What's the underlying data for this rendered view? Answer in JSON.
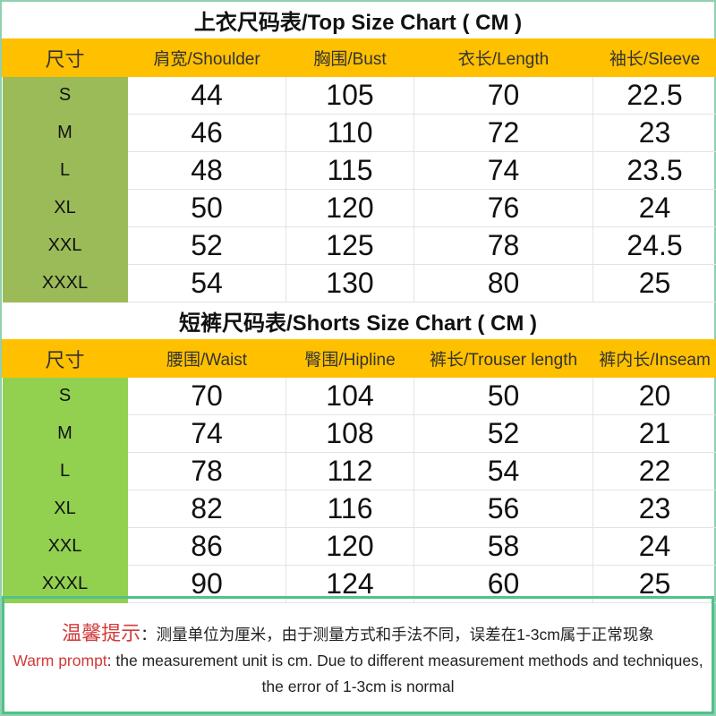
{
  "top": {
    "title": "上衣尺码表/Top Size Chart ( CM )",
    "headers": [
      "尺寸",
      "肩宽/Shoulder",
      "胸围/Bust",
      "衣长/Length",
      "袖长/Sleeve"
    ],
    "rows": [
      [
        "S",
        "44",
        "105",
        "70",
        "22.5"
      ],
      [
        "M",
        "46",
        "110",
        "72",
        "23"
      ],
      [
        "L",
        "48",
        "115",
        "74",
        "23.5"
      ],
      [
        "XL",
        "50",
        "120",
        "76",
        "24"
      ],
      [
        "XXL",
        "52",
        "125",
        "78",
        "24.5"
      ],
      [
        "XXXL",
        "54",
        "130",
        "80",
        "25"
      ]
    ]
  },
  "shorts": {
    "title": "短裤尺码表/Shorts Size Chart ( CM )",
    "headers": [
      "尺寸",
      "腰围/Waist",
      "臀围/Hipline",
      "裤长/Trouser length",
      "裤内长/Inseam"
    ],
    "rows": [
      [
        "S",
        "70",
        "104",
        "50",
        "20"
      ],
      [
        "M",
        "74",
        "108",
        "52",
        "21"
      ],
      [
        "L",
        "78",
        "112",
        "54",
        "22"
      ],
      [
        "XL",
        "82",
        "116",
        "56",
        "23"
      ],
      [
        "XXL",
        "86",
        "120",
        "58",
        "24"
      ],
      [
        "XXXL",
        "90",
        "124",
        "60",
        "25"
      ]
    ]
  },
  "note": {
    "cn_label": "温馨提示",
    "cn_text": "：测量单位为厘米，由于测量方式和手法不同，误差在1-3cm属于正常现象",
    "en_label": "Warm prompt",
    "en_text": ": the measurement unit is cm. Due to different measurement methods and techniques, the error of 1-3cm is normal"
  },
  "colors": {
    "header": "#ffc000",
    "top_size_col": "#9bbb59",
    "shorts_size_col": "#92d050",
    "warning": "#d23a3a"
  }
}
